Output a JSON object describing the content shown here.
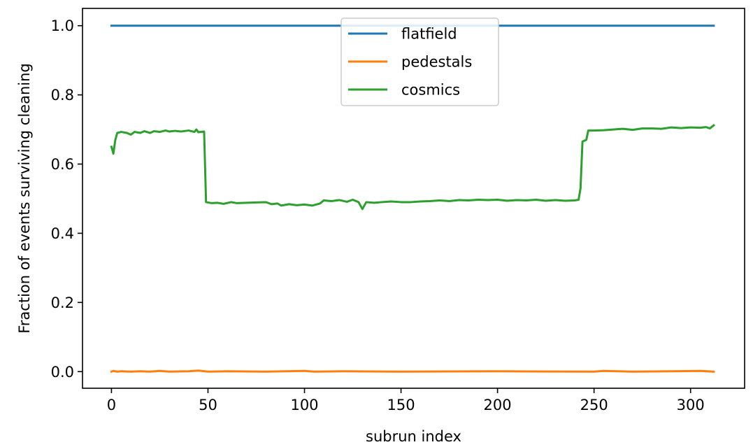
{
  "chart_data": {
    "type": "line",
    "xlabel": "subrun index",
    "ylabel": "Fraction of events surviving cleaning",
    "xlim": [
      -15,
      328
    ],
    "ylim": [
      -0.048,
      1.05
    ],
    "xticks": [
      0,
      50,
      100,
      150,
      200,
      250,
      300
    ],
    "yticks": [
      0.0,
      0.2,
      0.4,
      0.6,
      0.8,
      1.0
    ],
    "xtick_labels": [
      "0",
      "50",
      "100",
      "150",
      "200",
      "250",
      "300"
    ],
    "ytick_labels": [
      "0.0",
      "0.2",
      "0.4",
      "0.6",
      "0.8",
      "1.0"
    ],
    "grid": false,
    "legend_position": "top-center",
    "series": [
      {
        "name": "flatfield",
        "color": "#1f77b4",
        "points": [
          [
            0,
            1.0
          ],
          [
            312,
            1.0
          ]
        ]
      },
      {
        "name": "pedestals",
        "color": "#ff7f0e",
        "points": [
          [
            0,
            0.0
          ],
          [
            1,
            0.002
          ],
          [
            3,
            0.0
          ],
          [
            5,
            0.001
          ],
          [
            10,
            0.0
          ],
          [
            15,
            0.001
          ],
          [
            20,
            0.0
          ],
          [
            25,
            0.002
          ],
          [
            30,
            0.0
          ],
          [
            40,
            0.001
          ],
          [
            45,
            0.003
          ],
          [
            50,
            0.0
          ],
          [
            60,
            0.001
          ],
          [
            80,
            0.0
          ],
          [
            100,
            0.002
          ],
          [
            105,
            0.0
          ],
          [
            120,
            0.001
          ],
          [
            150,
            0.0
          ],
          [
            200,
            0.001
          ],
          [
            250,
            0.0
          ],
          [
            255,
            0.002
          ],
          [
            270,
            0.0
          ],
          [
            290,
            0.001
          ],
          [
            305,
            0.002
          ],
          [
            312,
            0.0
          ]
        ]
      },
      {
        "name": "cosmics",
        "color": "#2ca02c",
        "points": [
          [
            0,
            0.65
          ],
          [
            1,
            0.63
          ],
          [
            2,
            0.67
          ],
          [
            3,
            0.69
          ],
          [
            5,
            0.693
          ],
          [
            8,
            0.69
          ],
          [
            10,
            0.685
          ],
          [
            12,
            0.693
          ],
          [
            15,
            0.69
          ],
          [
            17,
            0.695
          ],
          [
            20,
            0.69
          ],
          [
            22,
            0.695
          ],
          [
            25,
            0.693
          ],
          [
            28,
            0.697
          ],
          [
            30,
            0.694
          ],
          [
            33,
            0.696
          ],
          [
            36,
            0.694
          ],
          [
            40,
            0.697
          ],
          [
            43,
            0.693
          ],
          [
            44,
            0.7
          ],
          [
            45,
            0.692
          ],
          [
            48,
            0.694
          ],
          [
            49,
            0.49
          ],
          [
            52,
            0.487
          ],
          [
            55,
            0.488
          ],
          [
            58,
            0.485
          ],
          [
            62,
            0.49
          ],
          [
            65,
            0.487
          ],
          [
            70,
            0.488
          ],
          [
            75,
            0.489
          ],
          [
            80,
            0.49
          ],
          [
            83,
            0.484
          ],
          [
            86,
            0.486
          ],
          [
            88,
            0.48
          ],
          [
            92,
            0.484
          ],
          [
            96,
            0.481
          ],
          [
            100,
            0.483
          ],
          [
            104,
            0.48
          ],
          [
            108,
            0.486
          ],
          [
            110,
            0.495
          ],
          [
            114,
            0.493
          ],
          [
            118,
            0.496
          ],
          [
            122,
            0.491
          ],
          [
            125,
            0.497
          ],
          [
            128,
            0.49
          ],
          [
            130,
            0.47
          ],
          [
            132,
            0.49
          ],
          [
            136,
            0.488
          ],
          [
            140,
            0.49
          ],
          [
            145,
            0.492
          ],
          [
            150,
            0.49
          ],
          [
            155,
            0.49
          ],
          [
            160,
            0.492
          ],
          [
            165,
            0.493
          ],
          [
            170,
            0.495
          ],
          [
            175,
            0.493
          ],
          [
            180,
            0.496
          ],
          [
            185,
            0.495
          ],
          [
            190,
            0.497
          ],
          [
            195,
            0.496
          ],
          [
            200,
            0.497
          ],
          [
            205,
            0.494
          ],
          [
            210,
            0.496
          ],
          [
            215,
            0.495
          ],
          [
            220,
            0.497
          ],
          [
            225,
            0.494
          ],
          [
            230,
            0.496
          ],
          [
            235,
            0.494
          ],
          [
            240,
            0.495
          ],
          [
            242,
            0.497
          ],
          [
            243,
            0.53
          ],
          [
            244,
            0.665
          ],
          [
            246,
            0.67
          ],
          [
            247,
            0.697
          ],
          [
            250,
            0.697
          ],
          [
            255,
            0.698
          ],
          [
            260,
            0.7
          ],
          [
            265,
            0.702
          ],
          [
            270,
            0.699
          ],
          [
            275,
            0.703
          ],
          [
            280,
            0.703
          ],
          [
            285,
            0.702
          ],
          [
            290,
            0.706
          ],
          [
            295,
            0.704
          ],
          [
            300,
            0.706
          ],
          [
            305,
            0.705
          ],
          [
            308,
            0.707
          ],
          [
            310,
            0.703
          ],
          [
            312,
            0.712
          ]
        ]
      }
    ]
  }
}
